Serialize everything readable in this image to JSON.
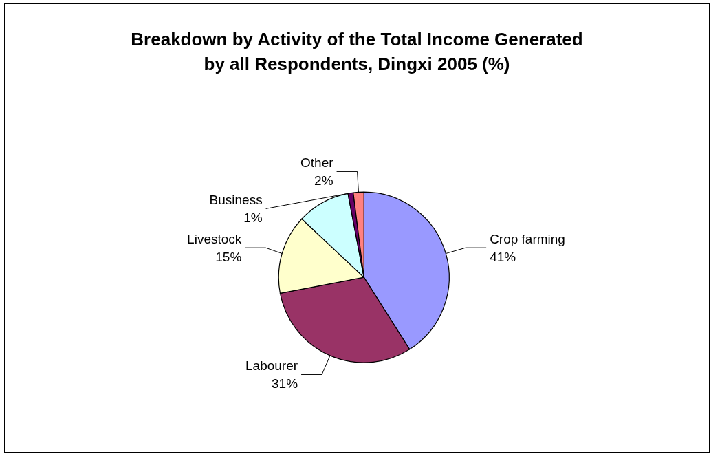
{
  "chart_data": {
    "type": "pie",
    "title": "Breakdown by Activity of the Total Income Generated\nby all Respondents, Dingxi 2005 (%)",
    "categories": [
      "Crop farming",
      "Labourer",
      "Livestock",
      null,
      "Business",
      "Other"
    ],
    "values": [
      41,
      31,
      15,
      10,
      1,
      2
    ],
    "value_labels": [
      "41%",
      "31%",
      "15%",
      null,
      "1%",
      "2%"
    ],
    "colors": [
      "#9999ff",
      "#993366",
      "#ffffcc",
      "#ccffff",
      "#660066",
      "#ff8080"
    ],
    "legend": false
  }
}
